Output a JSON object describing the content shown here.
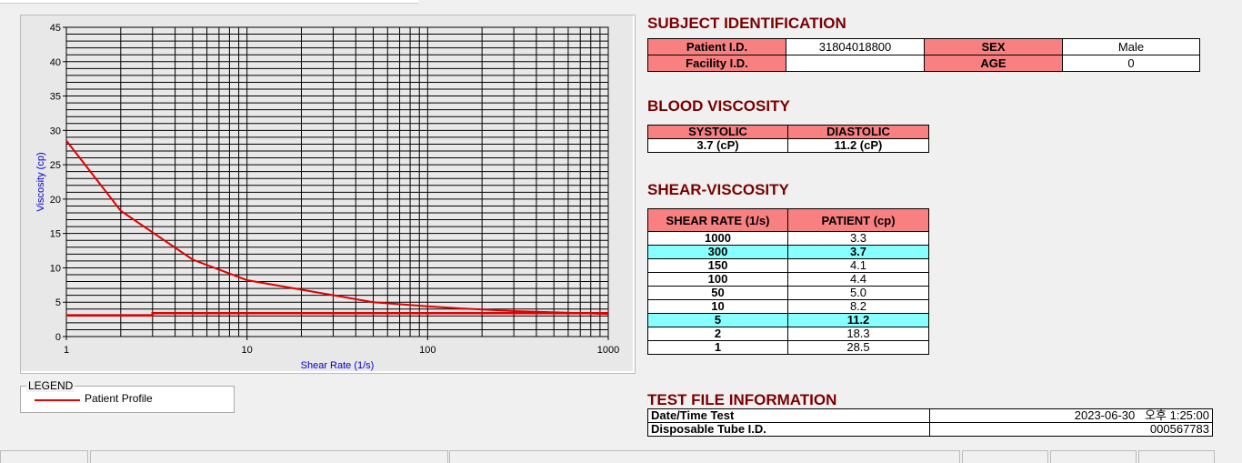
{
  "chart_data": {
    "type": "line",
    "xlabel": "Shear Rate (1/s)",
    "ylabel": "Viscosity (cp)",
    "xscale": "log",
    "xlim": [
      1,
      1000
    ],
    "ylim": [
      0,
      45
    ],
    "xticks": [
      "1",
      "10",
      "100",
      "1000"
    ],
    "yticks": [
      "0",
      "5",
      "10",
      "15",
      "20",
      "25",
      "30",
      "35",
      "40",
      "45"
    ],
    "grid": true,
    "series": [
      {
        "name": "Patient Profile",
        "color": "#e00000",
        "x": [
          1,
          2,
          5,
          10,
          50,
          100,
          150,
          300,
          1000
        ],
        "y": [
          28.5,
          18.3,
          11.2,
          8.2,
          5.0,
          4.4,
          4.1,
          3.7,
          3.3
        ]
      },
      {
        "color": "#e00000",
        "x": [
          1,
          3,
          3,
          1000
        ],
        "y": [
          3.1,
          3.1,
          3.4,
          3.4
        ]
      }
    ]
  },
  "legend": {
    "title": "LEGEND",
    "items": [
      "Patient Profile"
    ],
    "placement": "bottom-left"
  },
  "subject": {
    "title": "SUBJECT IDENTIFICATION",
    "patient_id_label": "Patient I.D.",
    "patient_id": "31804018800",
    "sex_label": "SEX",
    "sex": "Male",
    "facility_label": "Facility I.D.",
    "facility": "",
    "age_label": "AGE",
    "age": "0"
  },
  "blood": {
    "title": "BLOOD VISCOSITY",
    "systolic_label": "SYSTOLIC",
    "diastolic_label": "DIASTOLIC",
    "systolic": "3.7 (cP)",
    "diastolic": "11.2 (cP)"
  },
  "shear": {
    "title": "SHEAR-VISCOSITY",
    "col1": "SHEAR RATE (1/s)",
    "col2": "PATIENT (cp)",
    "rows": [
      [
        "1000",
        "3.3",
        false
      ],
      [
        "300",
        "3.7",
        true
      ],
      [
        "150",
        "4.1",
        false
      ],
      [
        "100",
        "4.4",
        false
      ],
      [
        "50",
        "5.0",
        false
      ],
      [
        "10",
        "8.2",
        false
      ],
      [
        "5",
        "11.2",
        true
      ],
      [
        "2",
        "18.3",
        false
      ],
      [
        "1",
        "28.5",
        false
      ]
    ]
  },
  "testfile": {
    "title": "TEST FILE INFORMATION",
    "date_label": "Date/Time Test",
    "date": "2023-06-30   오후 1:25:00",
    "tube_label": "Disposable Tube I.D.",
    "tube": "000567783"
  },
  "colors": {
    "header": "#f88080",
    "highlight": "#88ffff",
    "title": "#7a0000",
    "series": "#e00000"
  }
}
